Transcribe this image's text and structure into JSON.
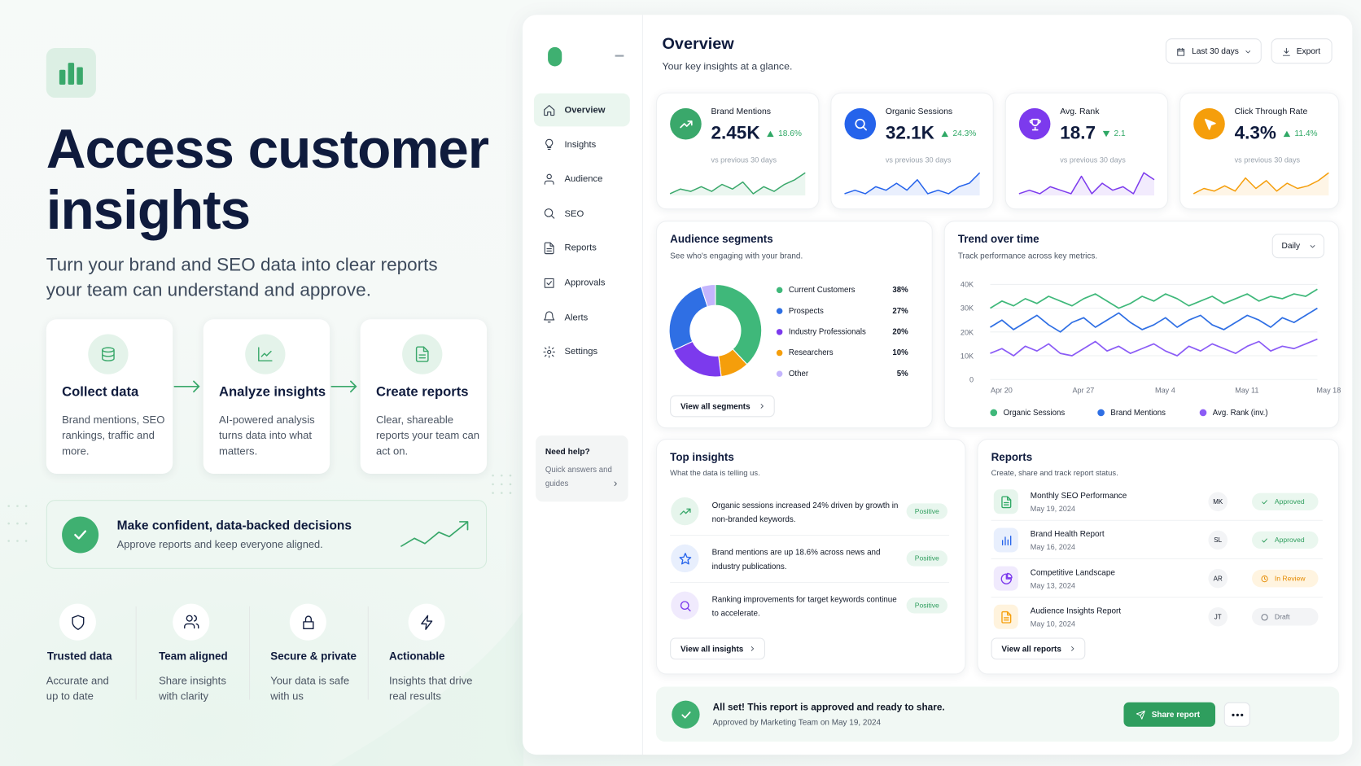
{
  "hero": {
    "title": "Access customer insights",
    "subtitle": "Turn your brand and SEO data into clear reports your team can understand and approve."
  },
  "steps": [
    {
      "title": "Collect data",
      "description": "Brand mentions, SEO rankings, traffic and more."
    },
    {
      "title": "Analyze insights",
      "description": "AI-powered analysis turns data into what matters."
    },
    {
      "title": "Create reports",
      "description": "Clear, shareable reports your team can act on."
    }
  ],
  "banner": {
    "title": "Make confident, data-backed decisions",
    "subtitle": "Approve reports and keep everyone aligned."
  },
  "features": [
    {
      "title": "Trusted data",
      "description": "Accurate and up to date"
    },
    {
      "title": "Team aligned",
      "description": "Share insights with clarity"
    },
    {
      "title": "Secure & private",
      "description": "Your data is safe with us"
    },
    {
      "title": "Actionable",
      "description": "Insights that drive real results"
    }
  ],
  "dashboard": {
    "nav": [
      "Overview",
      "Insights",
      "Audience",
      "SEO",
      "Reports",
      "Approvals",
      "Alerts",
      "Settings"
    ],
    "help": {
      "title": "Need help?",
      "text": "Quick answers and guides"
    },
    "header": {
      "title": "Overview",
      "subtitle": "Your key insights at a glance.",
      "range": "Last 30 days",
      "export": "Export"
    },
    "kpis": [
      {
        "label": "Brand Mentions",
        "value": "2.45K",
        "change": "18.6%",
        "direction": "up",
        "note": "vs previous 30 days",
        "color": "#3aa86b",
        "sparkline": [
          5,
          7,
          6,
          8,
          6,
          9,
          7,
          10,
          5,
          8,
          6,
          9,
          11,
          14
        ]
      },
      {
        "label": "Organic Sessions",
        "value": "32.1K",
        "change": "24.3%",
        "direction": "up",
        "note": "vs previous 30 days",
        "color": "#2563eb",
        "sparkline": [
          6,
          7,
          6,
          8,
          7,
          9,
          7,
          10,
          6,
          7,
          6,
          8,
          9,
          12
        ]
      },
      {
        "label": "Avg. Rank",
        "value": "18.7",
        "change": "2.1",
        "direction": "down",
        "note": "vs previous 30 days",
        "color": "#7c3aed",
        "sparkline": [
          6,
          7,
          6,
          8,
          7,
          6,
          11,
          6,
          9,
          7,
          8,
          6,
          12,
          10
        ]
      },
      {
        "label": "Click Through Rate",
        "value": "4.3%",
        "change": "11.4%",
        "direction": "up",
        "note": "vs previous 30 days",
        "color": "#f59e0b",
        "sparkline": [
          5,
          7,
          6,
          8,
          6,
          11,
          7,
          10,
          6,
          9,
          7,
          8,
          10,
          13
        ]
      }
    ],
    "insights": {
      "title": "Top insights",
      "subtitle": "What the data is telling us.",
      "items": [
        {
          "text": "Organic sessions increased 24% driven by growth in non-branded keywords.",
          "badge": "Positive"
        },
        {
          "text": "Brand mentions are up 18.6% across news and industry publications.",
          "badge": "Positive"
        },
        {
          "text": "Ranking improvements for target keywords continue to accelerate.",
          "badge": "Positive"
        }
      ],
      "button": "View all insights"
    },
    "reports": {
      "title": "Reports",
      "subtitle": "Create, share and track report status.",
      "items": [
        {
          "name": "Monthly SEO Performance",
          "date": "May 19, 2024",
          "owner": "MK",
          "status": "Approved"
        },
        {
          "name": "Brand Health Report",
          "date": "May 16, 2024",
          "owner": "SL",
          "status": "Approved"
        },
        {
          "name": "Competitive Landscape",
          "date": "May 13, 2024",
          "owner": "AR",
          "status": "In Review"
        },
        {
          "name": "Audience Insights Report",
          "date": "May 10, 2024",
          "owner": "JT",
          "status": "Draft"
        }
      ],
      "button": "View all reports"
    },
    "footer": {
      "title": "All set! This report is approved and ready to share.",
      "subtitle": "Approved by Marketing Team on May 19, 2024",
      "button": "Share report"
    }
  },
  "chart_data": [
    {
      "type": "pie",
      "title": "Audience segments",
      "subtitle": "See who's engaging with your brand.",
      "categories": [
        "Current Customers",
        "Prospects",
        "Industry Professionals",
        "Researchers",
        "Other"
      ],
      "values": [
        38,
        27,
        20,
        10,
        5
      ],
      "value_labels": [
        "38%",
        "27%",
        "20%",
        "10%",
        "5%"
      ],
      "colors": [
        "#3fb87a",
        "#2f6fe4",
        "#7c3aed",
        "#f59e0b",
        "#c4b5fd"
      ],
      "button": "View all segments"
    },
    {
      "type": "line",
      "title": "Trend over time",
      "subtitle": "Track performance across key metrics.",
      "control": "Daily",
      "x": [
        "Apr 20",
        null,
        null,
        null,
        null,
        null,
        null,
        "Apr 27",
        null,
        null,
        null,
        null,
        null,
        null,
        "May 4",
        null,
        null,
        null,
        null,
        null,
        null,
        "May 11",
        null,
        null,
        null,
        null,
        null,
        null,
        "May 18"
      ],
      "series": [
        {
          "name": "Organic Sessions",
          "color": "#3fb87a",
          "values": [
            30000,
            33000,
            31000,
            34000,
            32000,
            35000,
            33000,
            31000,
            34000,
            36000,
            33000,
            30000,
            32000,
            35000,
            33000,
            36000,
            34000,
            31000,
            33000,
            35000,
            32000,
            34000,
            36000,
            33000,
            35000,
            34000,
            36000,
            35000,
            38000
          ]
        },
        {
          "name": "Brand Mentions",
          "color": "#2f6fe4",
          "values": [
            22000,
            25000,
            21000,
            24000,
            27000,
            23000,
            20000,
            24000,
            26000,
            22000,
            25000,
            28000,
            24000,
            21000,
            23000,
            26000,
            22000,
            25000,
            27000,
            23000,
            21000,
            24000,
            27000,
            25000,
            22000,
            26000,
            24000,
            27000,
            30000
          ]
        },
        {
          "name": "Avg. Rank (inv.)",
          "color": "#8b5cf6",
          "values": [
            11000,
            13000,
            10000,
            14000,
            12000,
            15000,
            11000,
            10000,
            13000,
            16000,
            12000,
            14000,
            11000,
            13000,
            15000,
            12000,
            10000,
            14000,
            12000,
            15000,
            13000,
            11000,
            14000,
            16000,
            12000,
            14000,
            13000,
            15000,
            17000
          ]
        }
      ],
      "ylim": [
        0,
        40000
      ],
      "yticks": [
        0,
        {
          "value": 10000,
          "label": "10K"
        },
        {
          "value": 20000,
          "label": "20K"
        },
        {
          "value": 30000,
          "label": "30K"
        },
        {
          "value": 40000,
          "label": "40K"
        }
      ],
      "grid": true
    }
  ]
}
